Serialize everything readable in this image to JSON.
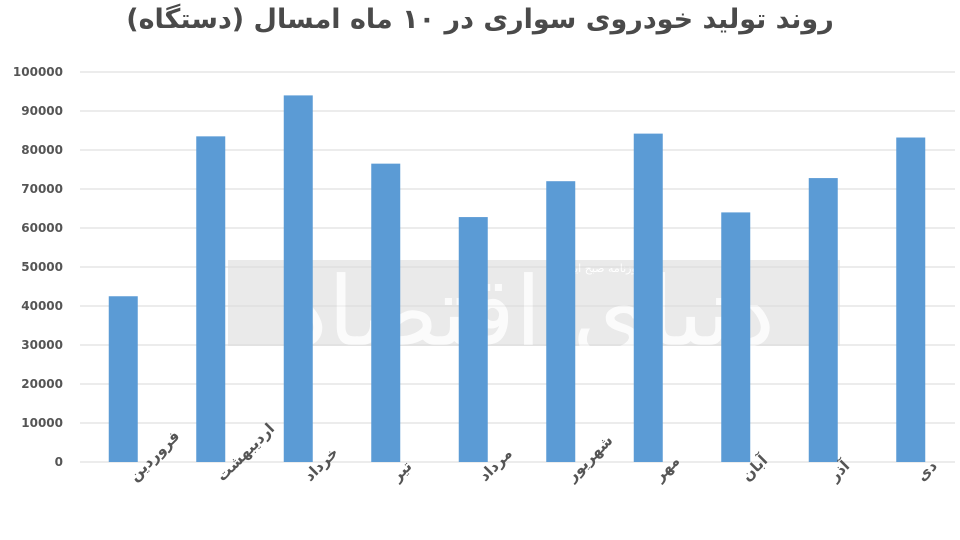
{
  "chart_data": {
    "type": "bar",
    "title": "روند تولید خودروی سواری در ۱۰ ماه امسال (دستگاه)",
    "xlabel": "",
    "ylabel": "",
    "categories": [
      "فروردین",
      "اردیبهشت",
      "خرداد",
      "تیر",
      "مرداد",
      "شهریور",
      "مهر",
      "آبان",
      "آذر",
      "دی"
    ],
    "values": [
      42500,
      83500,
      94000,
      76500,
      62800,
      72000,
      84200,
      64000,
      72800,
      83200
    ],
    "ylim": [
      0,
      100000
    ],
    "yticks": [
      "0",
      "10000",
      "20000",
      "30000",
      "40000",
      "50000",
      "60000",
      "70000",
      "80000",
      "90000",
      "100000"
    ],
    "grid": true,
    "legend": "none",
    "colors": {
      "bar": "#5b9bd5",
      "grid": "#d9d9d9",
      "text": "#555555",
      "title": "#4a4a4a",
      "watermark_band": "#d9d9d9"
    }
  },
  "watermark": {
    "text": "روزنامه صبح ایران",
    "logo": "دنیای اقتصاد"
  }
}
